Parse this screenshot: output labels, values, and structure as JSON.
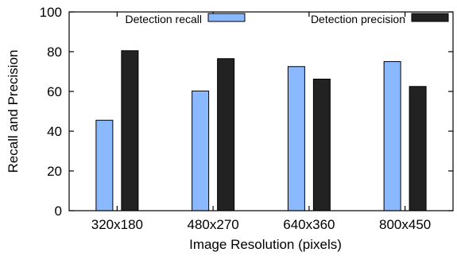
{
  "chart_data": {
    "type": "bar",
    "categories": [
      "320x180",
      "480x270",
      "640x360",
      "800x450"
    ],
    "series": [
      {
        "name": "Detection recall",
        "values": [
          45.5,
          60.2,
          72.5,
          75.0
        ],
        "color": "#8ab9ff"
      },
      {
        "name": "Detection precision",
        "values": [
          80.5,
          76.5,
          66.2,
          62.5
        ],
        "color": "#222222"
      }
    ],
    "title": "",
    "xlabel": "Image Resolution (pixels)",
    "ylabel": "Recall and Precision",
    "ylim": [
      0,
      100
    ],
    "yticks": [
      "0",
      "20",
      "40",
      "60",
      "80",
      "100"
    ],
    "grid": false,
    "legend": "top, horizontal"
  }
}
